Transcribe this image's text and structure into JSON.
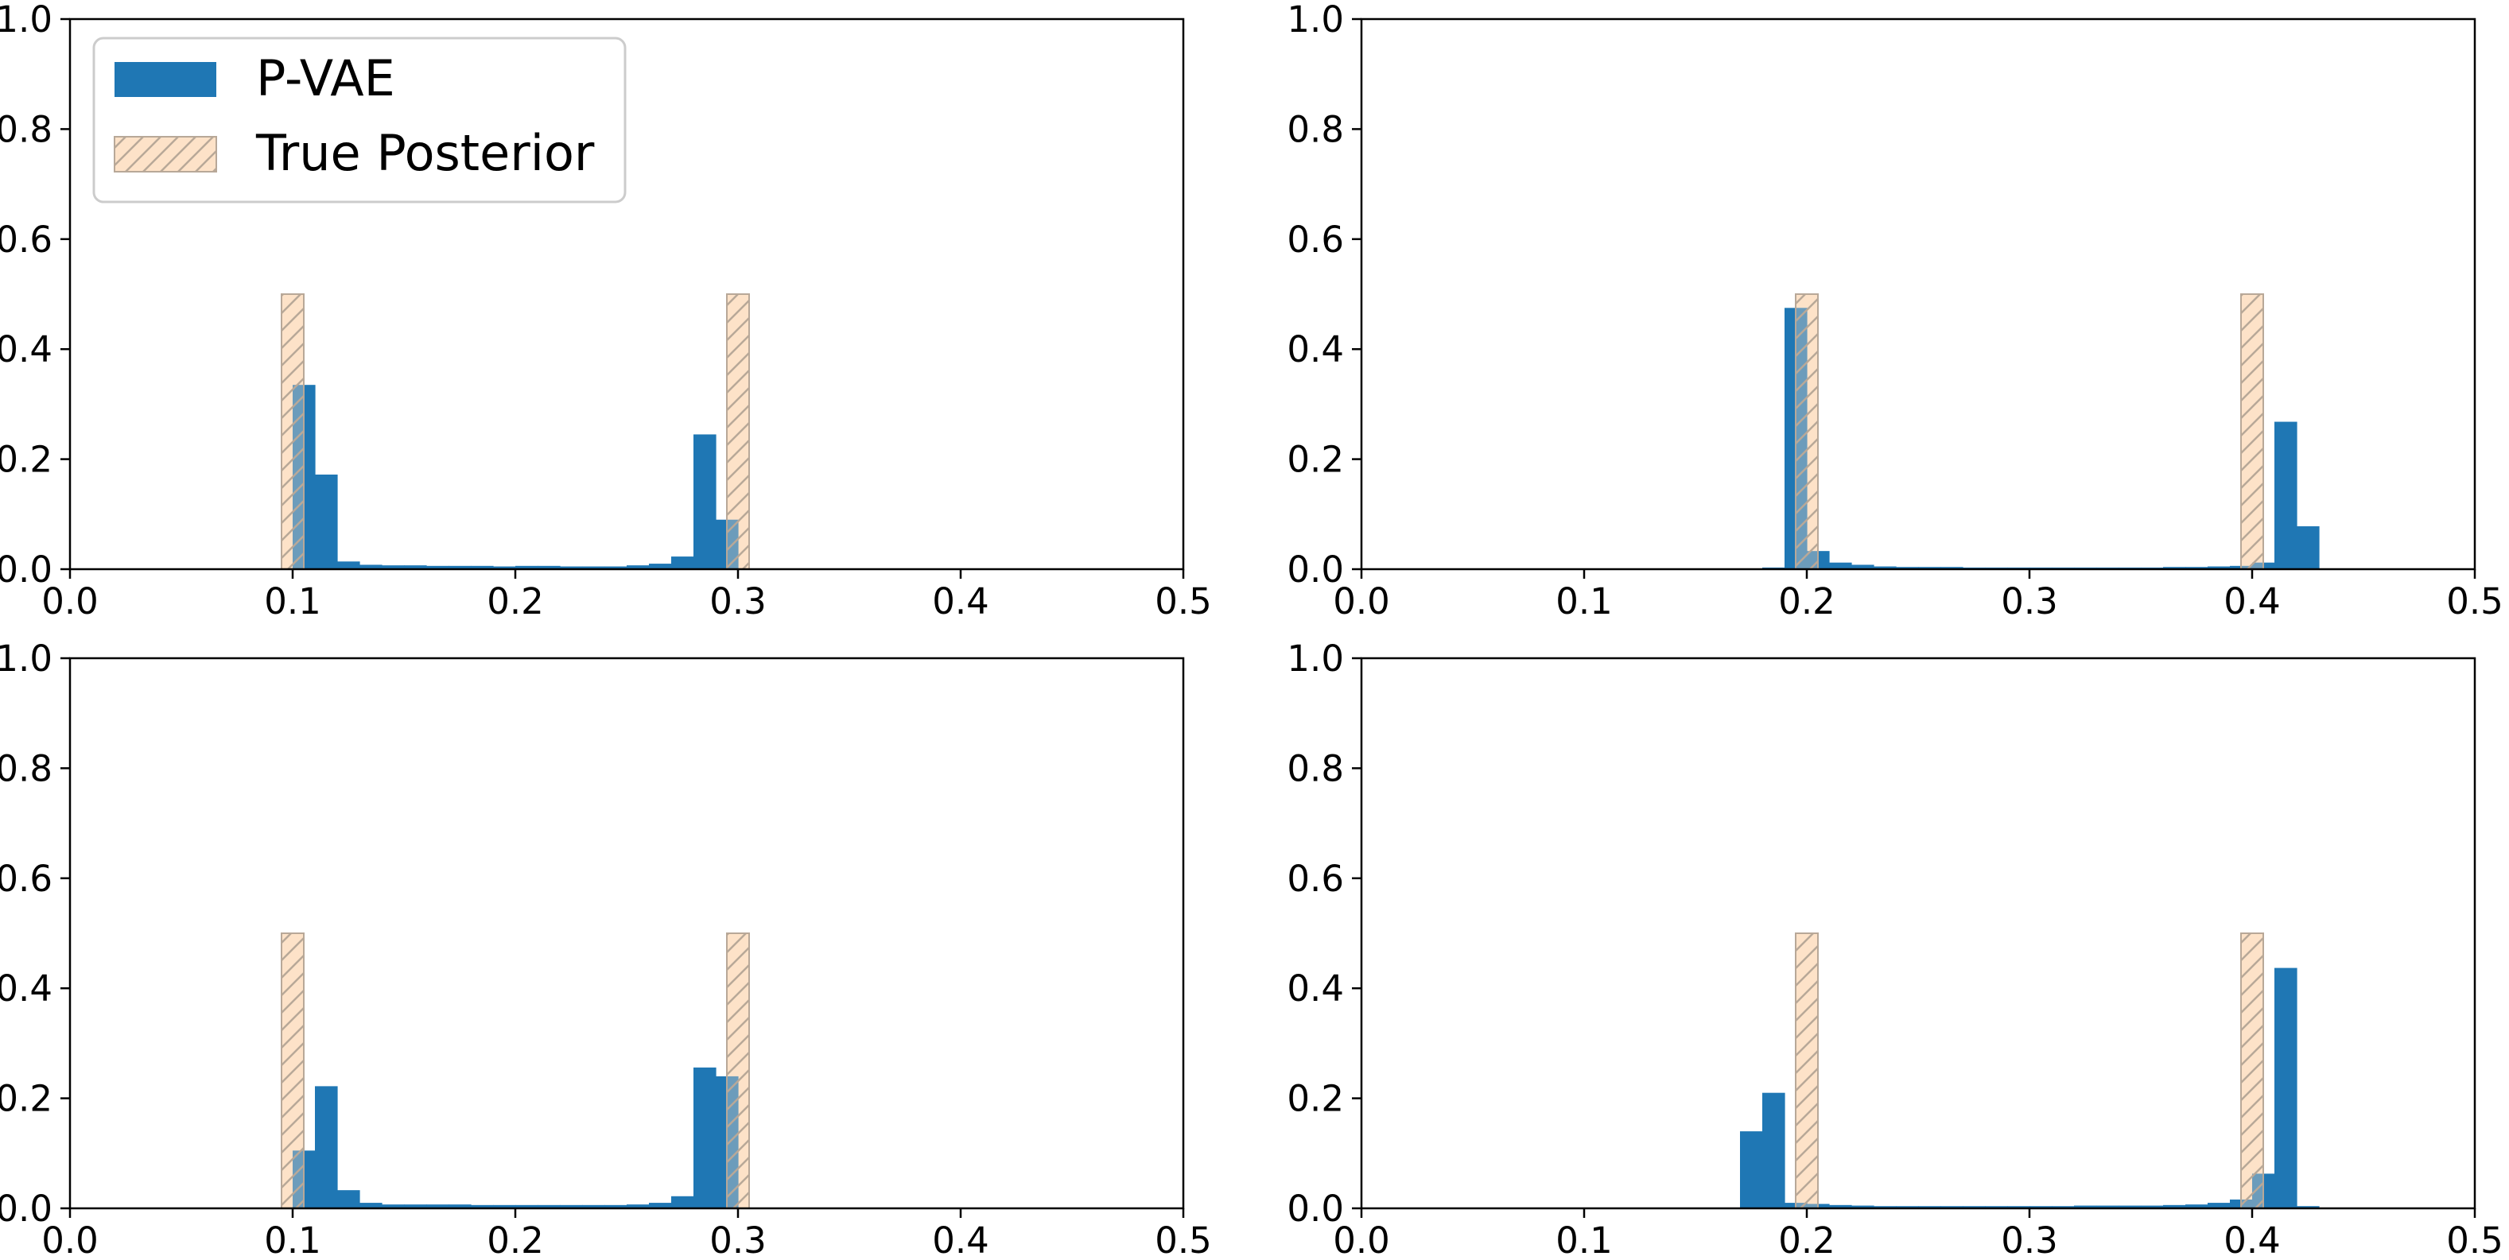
{
  "colors": {
    "pvae": "#1f77b4",
    "true_fill": "#fde2c8",
    "true_edge": "#b8a898",
    "axis": "#000000",
    "legend_edge": "#cccccc"
  },
  "legend": {
    "entries": [
      {
        "label": "P-VAE",
        "kind": "pvae"
      },
      {
        "label": "True Posterior",
        "kind": "true"
      }
    ]
  },
  "chart_data": [
    {
      "type": "bar",
      "panel": "top-left",
      "xlim": [
        0.0,
        0.5
      ],
      "ylim": [
        0.0,
        1.0
      ],
      "xticks": [
        "0.0",
        "0.1",
        "0.2",
        "0.3",
        "0.4",
        "0.5"
      ],
      "yticks": [
        "0.0",
        "0.2",
        "0.4",
        "0.6",
        "0.8",
        "1.0"
      ],
      "legend_position": "top-left",
      "series": [
        {
          "name": "P-VAE",
          "bin_width": 0.01,
          "bin_starts": [
            0.1,
            0.11,
            0.12,
            0.13,
            0.14,
            0.15,
            0.16,
            0.17,
            0.18,
            0.19,
            0.2,
            0.21,
            0.22,
            0.23,
            0.24,
            0.25,
            0.26,
            0.27,
            0.28,
            0.29
          ],
          "values": [
            0.335,
            0.172,
            0.014,
            0.008,
            0.007,
            0.007,
            0.006,
            0.006,
            0.006,
            0.005,
            0.006,
            0.006,
            0.005,
            0.005,
            0.005,
            0.007,
            0.01,
            0.023,
            0.245,
            0.09
          ]
        },
        {
          "name": "True Posterior",
          "bin_width": 0.01,
          "bin_starts": [
            0.095,
            0.295
          ],
          "values": [
            0.5,
            0.5
          ]
        }
      ]
    },
    {
      "type": "bar",
      "panel": "top-right",
      "xlim": [
        0.0,
        0.5
      ],
      "ylim": [
        0.0,
        1.0
      ],
      "xticks": [
        "0.0",
        "0.1",
        "0.2",
        "0.3",
        "0.4",
        "0.5"
      ],
      "yticks": [
        "0.0",
        "0.2",
        "0.4",
        "0.6",
        "0.8",
        "1.0"
      ],
      "series": [
        {
          "name": "P-VAE",
          "bin_width": 0.01,
          "bin_starts": [
            0.18,
            0.19,
            0.2,
            0.21,
            0.22,
            0.23,
            0.24,
            0.25,
            0.26,
            0.27,
            0.28,
            0.29,
            0.3,
            0.31,
            0.32,
            0.33,
            0.34,
            0.35,
            0.36,
            0.37,
            0.38,
            0.39,
            0.4,
            0.41,
            0.42
          ],
          "values": [
            0.003,
            0.475,
            0.033,
            0.012,
            0.008,
            0.005,
            0.004,
            0.004,
            0.004,
            0.003,
            0.003,
            0.003,
            0.003,
            0.003,
            0.003,
            0.003,
            0.003,
            0.003,
            0.004,
            0.004,
            0.005,
            0.006,
            0.012,
            0.268,
            0.078
          ]
        },
        {
          "name": "True Posterior",
          "bin_width": 0.01,
          "bin_starts": [
            0.195,
            0.395
          ],
          "values": [
            0.5,
            0.5
          ]
        }
      ]
    },
    {
      "type": "bar",
      "panel": "bottom-left",
      "xlim": [
        0.0,
        0.5
      ],
      "ylim": [
        0.0,
        1.0
      ],
      "xticks": [
        "0.0",
        "0.1",
        "0.2",
        "0.3",
        "0.4",
        "0.5"
      ],
      "yticks": [
        "0.0",
        "0.2",
        "0.4",
        "0.6",
        "0.8",
        "1.0"
      ],
      "series": [
        {
          "name": "P-VAE",
          "bin_width": 0.01,
          "bin_starts": [
            0.1,
            0.11,
            0.12,
            0.13,
            0.14,
            0.15,
            0.16,
            0.17,
            0.18,
            0.19,
            0.2,
            0.21,
            0.22,
            0.23,
            0.24,
            0.25,
            0.26,
            0.27,
            0.28,
            0.29
          ],
          "values": [
            0.105,
            0.222,
            0.033,
            0.01,
            0.007,
            0.007,
            0.007,
            0.007,
            0.006,
            0.006,
            0.006,
            0.006,
            0.006,
            0.006,
            0.006,
            0.007,
            0.01,
            0.022,
            0.256,
            0.24
          ]
        },
        {
          "name": "True Posterior",
          "bin_width": 0.01,
          "bin_starts": [
            0.095,
            0.295
          ],
          "values": [
            0.5,
            0.5
          ]
        }
      ]
    },
    {
      "type": "bar",
      "panel": "bottom-right",
      "xlim": [
        0.0,
        0.5
      ],
      "ylim": [
        0.0,
        1.0
      ],
      "xticks": [
        "0.0",
        "0.1",
        "0.2",
        "0.3",
        "0.4",
        "0.5"
      ],
      "yticks": [
        "0.0",
        "0.2",
        "0.4",
        "0.6",
        "0.8",
        "1.0"
      ],
      "series": [
        {
          "name": "P-VAE",
          "bin_width": 0.01,
          "bin_starts": [
            0.17,
            0.18,
            0.19,
            0.2,
            0.21,
            0.22,
            0.23,
            0.24,
            0.25,
            0.26,
            0.27,
            0.28,
            0.29,
            0.3,
            0.31,
            0.32,
            0.33,
            0.34,
            0.35,
            0.36,
            0.37,
            0.38,
            0.39,
            0.4,
            0.41,
            0.42
          ],
          "values": [
            0.14,
            0.21,
            0.01,
            0.008,
            0.006,
            0.005,
            0.004,
            0.004,
            0.004,
            0.004,
            0.004,
            0.004,
            0.004,
            0.004,
            0.004,
            0.005,
            0.005,
            0.005,
            0.005,
            0.006,
            0.007,
            0.01,
            0.016,
            0.063,
            0.437,
            0.004
          ]
        },
        {
          "name": "True Posterior",
          "bin_width": 0.01,
          "bin_starts": [
            0.195,
            0.395
          ],
          "values": [
            0.5,
            0.5
          ]
        }
      ]
    }
  ]
}
